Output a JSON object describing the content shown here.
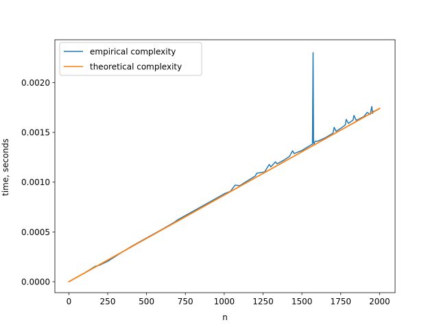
{
  "chart_data": {
    "type": "line",
    "title": "",
    "xlabel": "n",
    "ylabel": "time, seconds",
    "xlim": [
      -90,
      2100
    ],
    "ylim": [
      -0.00011,
      0.00243
    ],
    "xticks": [
      0,
      250,
      500,
      750,
      1000,
      1250,
      1500,
      1750,
      2000
    ],
    "xtick_labels": [
      "0",
      "250",
      "500",
      "750",
      "1000",
      "1250",
      "1500",
      "1750",
      "2000"
    ],
    "yticks": [
      0,
      0.0005,
      0.001,
      0.0015,
      0.002
    ],
    "ytick_labels": [
      "0.0000",
      "0.0005",
      "0.0010",
      "0.0015",
      "0.0020"
    ],
    "grid": false,
    "legend_location": "upper left",
    "series": [
      {
        "name": "empirical complexity",
        "color": "#1f77b4",
        "x": [
          0,
          100,
          170,
          200,
          250,
          300,
          320,
          400,
          500,
          600,
          680,
          700,
          800,
          900,
          1000,
          1040,
          1070,
          1100,
          1150,
          1200,
          1210,
          1260,
          1290,
          1300,
          1330,
          1340,
          1380,
          1420,
          1440,
          1450,
          1500,
          1560,
          1568,
          1572,
          1575,
          1578,
          1585,
          1600,
          1650,
          1700,
          1708,
          1720,
          1750,
          1780,
          1785,
          1800,
          1830,
          1835,
          1850,
          1900,
          1920,
          1940,
          1950,
          1955,
          1960,
          1980,
          2000
        ],
        "y": [
          0.0,
          8.7e-05,
          0.000155,
          0.000167,
          0.000205,
          0.000254,
          0.000275,
          0.000352,
          0.00044,
          0.000526,
          0.000598,
          0.000621,
          0.000708,
          0.000795,
          0.000883,
          0.000908,
          0.00097,
          0.000965,
          0.001014,
          0.001062,
          0.00109,
          0.001102,
          0.001178,
          0.001153,
          0.001204,
          0.001184,
          0.001217,
          0.001258,
          0.001315,
          0.001287,
          0.001318,
          0.001375,
          0.00138,
          0.0023,
          0.0014,
          0.001383,
          0.00141,
          0.00141,
          0.001445,
          0.001492,
          0.00155,
          0.00151,
          0.00154,
          0.001575,
          0.00163,
          0.00159,
          0.001625,
          0.00167,
          0.00162,
          0.00166,
          0.0017,
          0.00168,
          0.00176,
          0.00169,
          0.00171,
          0.00172,
          0.00174
        ]
      },
      {
        "name": "theoretical complexity",
        "color": "#ff7f0e",
        "x": [
          0,
          2000
        ],
        "y": [
          0.0,
          0.00174
        ]
      }
    ]
  }
}
